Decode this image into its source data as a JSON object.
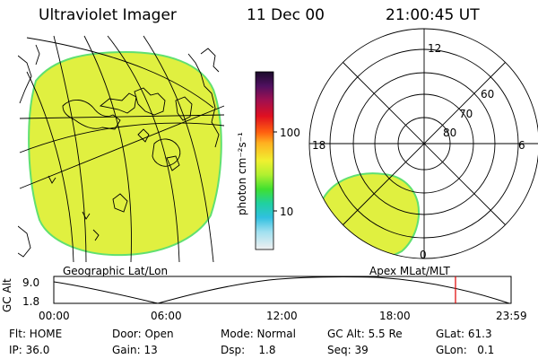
{
  "header": {
    "instrument": "Ultraviolet Imager",
    "date": "11 Dec 00",
    "time": "21:00:45 UT"
  },
  "colorbar": {
    "label": "photon cm⁻²s⁻¹",
    "ticks": [
      "100",
      "10"
    ]
  },
  "geo_panel": {
    "caption": "Geographic Lat/Lon"
  },
  "polar_panel": {
    "caption": "Apex MLat/MLT",
    "mlt_labels": {
      "top": "12",
      "left": "18",
      "right": "6",
      "bottom": "0"
    },
    "lat_labels": [
      "60",
      "70",
      "80"
    ]
  },
  "altitude_plot": {
    "ylabel": "GC Alt",
    "y_ticks": [
      "9.0",
      "1.8"
    ],
    "x_ticks": [
      "00:00",
      "06:00",
      "12:00",
      "18:00",
      "23:59"
    ]
  },
  "status": {
    "flt": "Flt: HOME",
    "door": "Door: Open",
    "mode": "Mode: Normal",
    "gc_alt": "GC Alt: 5.5 Re",
    "glat": "GLat: 61.3",
    "ip": "IP: 36.0",
    "gain": "Gain: 13",
    "dsp": "Dsp:    1.8",
    "seq": "Seq: 39",
    "glon": "GLon:   0.1"
  },
  "colors": {
    "aurora": "#e0f040",
    "aurora_edge": "#60e070"
  }
}
